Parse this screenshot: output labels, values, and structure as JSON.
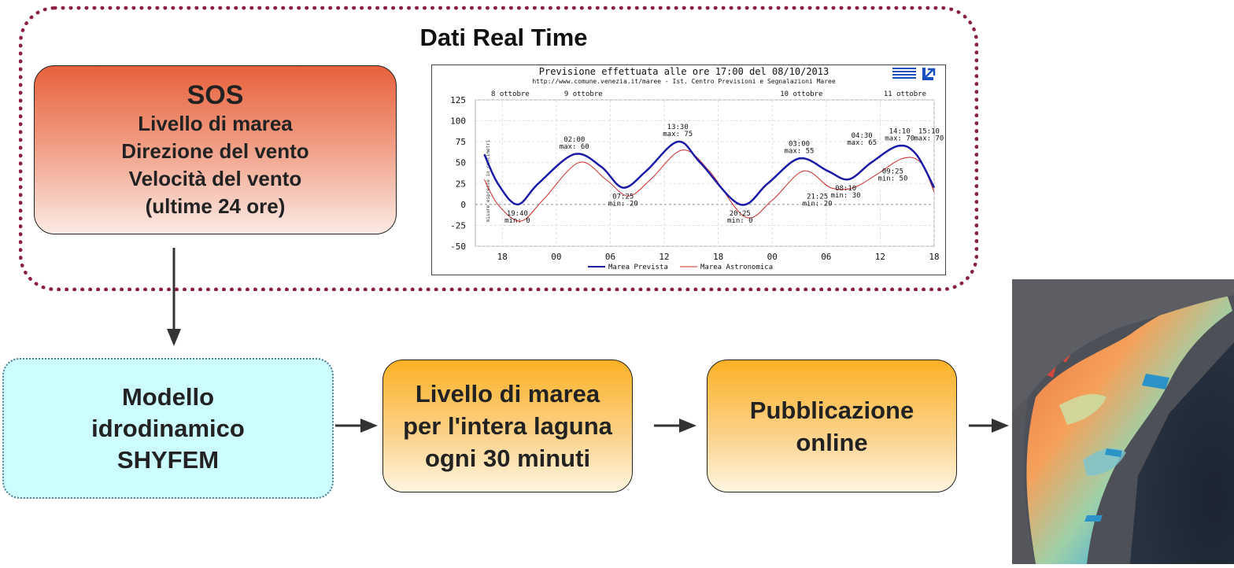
{
  "frame": {
    "title": "Dati Real Time"
  },
  "sos": {
    "heading": "SOS",
    "lines": [
      "Livello di marea",
      "Direzione del vento",
      "Velocità del vento",
      "(ultime 24 ore)"
    ]
  },
  "model": {
    "lines": [
      "Modello",
      "idrodinamico",
      "SHYFEM"
    ]
  },
  "tide_output": {
    "lines": [
      "Livello di marea",
      "per l'intera laguna",
      "ogni 30 minuti"
    ]
  },
  "publication": {
    "lines": [
      "Pubblicazione",
      "online"
    ]
  },
  "chart_data": {
    "type": "line",
    "title": "Previsione effettuata alle ore 17:00 del 08/10/2013",
    "subtitle": "http://www.comune.venezia.it/maree - Ist. Centro Previsioni e Segnalazioni Maree",
    "ylabel": "misure espresse in centimetri",
    "ylim": [
      -50,
      125
    ],
    "yticks": [
      125,
      100,
      75,
      50,
      25,
      0,
      -25,
      -50
    ],
    "x_hours": [
      15,
      66
    ],
    "xticks": [
      "18",
      "00",
      "06",
      "12",
      "18",
      "00",
      "06",
      "12",
      "18"
    ],
    "date_labels": [
      "8 ottobre",
      "9 ottobre",
      "10 ottobre",
      "11 ottobre"
    ],
    "grid": true,
    "legend": "bottom",
    "series": [
      {
        "name": "Marea Prevista",
        "color": "#1a1aa6",
        "x": [
          16.0,
          17.5,
          19.67,
          22.0,
          26.0,
          29.0,
          31.42,
          34.0,
          37.5,
          40.0,
          44.42,
          47.5,
          51.0,
          54.17,
          56.5,
          59.0,
          62.0,
          64.0,
          66.0
        ],
        "y": [
          60,
          25,
          0,
          25,
          60,
          45,
          20,
          40,
          75,
          50,
          0,
          25,
          55,
          40,
          30,
          50,
          70,
          60,
          20
        ]
      },
      {
        "name": "Marea Astronomica",
        "color": "#cc2a2a",
        "x": [
          16.0,
          17.5,
          20.0,
          22.5,
          26.5,
          29.5,
          32.0,
          34.5,
          38.0,
          41.0,
          45.0,
          48.0,
          51.5,
          54.5,
          57.0,
          59.5,
          62.5,
          64.5,
          66.0
        ],
        "y": [
          30,
          0,
          -20,
          5,
          50,
          30,
          10,
          30,
          65,
          40,
          -15,
          5,
          40,
          20,
          20,
          35,
          55,
          50,
          15
        ]
      }
    ],
    "annotations": [
      {
        "time": "19:40",
        "label": "min: 0",
        "x": 19.67,
        "y": 0
      },
      {
        "time": "02:00",
        "label": "max: 60",
        "x": 26.0,
        "y": 60
      },
      {
        "time": "07:25",
        "label": "min: 20",
        "x": 31.42,
        "y": 20
      },
      {
        "time": "13:30",
        "label": "max: 75",
        "x": 37.5,
        "y": 75
      },
      {
        "time": "20:25",
        "label": "min: 0",
        "x": 44.42,
        "y": 0
      },
      {
        "time": "03:00",
        "label": "max: 55",
        "x": 51.0,
        "y": 55
      },
      {
        "time": "08:10",
        "label": "min: 30",
        "x": 56.17,
        "y": 30
      },
      {
        "time": "14:10",
        "label": "max: 70",
        "x": 62.17,
        "y": 70
      },
      {
        "time": "21:25",
        "label": "min: 20",
        "x": 69.42,
        "y": 20
      },
      {
        "time": "04:30",
        "label": "max: 65",
        "x": 76.5,
        "y": 65
      },
      {
        "time": "09:25",
        "label": "min: 50",
        "x": 81.42,
        "y": 50
      },
      {
        "time": "15:10",
        "label": "max: 70",
        "x": 87.17,
        "y": 70
      }
    ]
  },
  "map": {
    "description_icon": "lagoon-map-image"
  }
}
